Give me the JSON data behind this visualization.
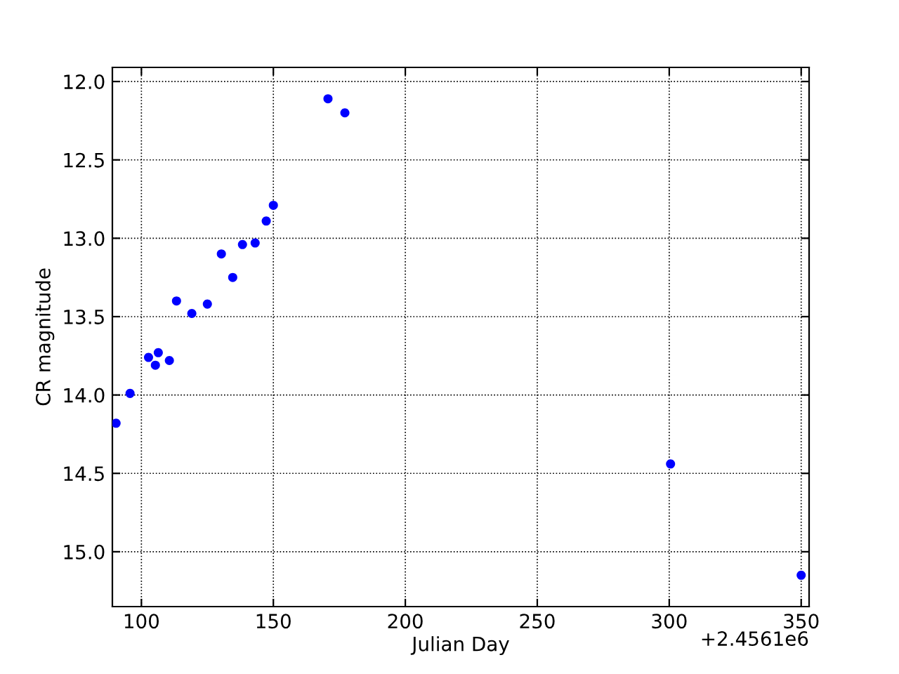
{
  "chart_data": {
    "type": "scatter",
    "xlabel": "Julian Day",
    "ylabel": "CR magnitude",
    "x": [
      90.4,
      95.7,
      102.7,
      105.3,
      106.4,
      110.6,
      113.3,
      119.1,
      125.0,
      130.3,
      134.6,
      138.3,
      143.1,
      147.3,
      150.0,
      170.7,
      177.1,
      300.5,
      350.0
    ],
    "series": [
      {
        "color": "#0000ff",
        "values": [
          14.18,
          13.99,
          13.76,
          13.81,
          13.73,
          13.78,
          13.4,
          13.48,
          13.42,
          13.1,
          13.25,
          13.04,
          13.03,
          12.89,
          12.79,
          12.11,
          12.2,
          14.44,
          15.15
        ]
      }
    ],
    "xlim": [
      89,
      353
    ],
    "xticks": [
      100,
      150,
      200,
      250,
      300,
      350
    ],
    "ylim": [
      15.35,
      11.91
    ],
    "yticks": [
      {
        "value": 12.0,
        "label": "12.0"
      },
      {
        "value": 12.5,
        "label": "12.5"
      },
      {
        "value": 13.0,
        "label": "13.0"
      },
      {
        "value": 13.5,
        "label": "13.5"
      },
      {
        "value": 14.0,
        "label": "14.0"
      },
      {
        "value": 14.5,
        "label": "14.5"
      },
      {
        "value": 15.0,
        "label": "15.0"
      }
    ],
    "annotations": [
      "+2.4561e6"
    ],
    "grid": true,
    "marker": "circle"
  }
}
